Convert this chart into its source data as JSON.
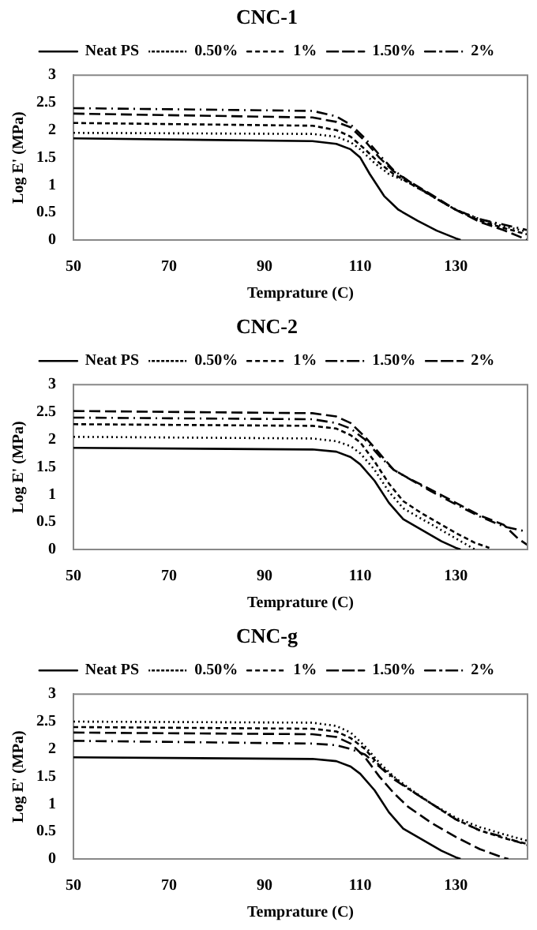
{
  "chart_data": [
    {
      "type": "line",
      "title": "CNC-1",
      "xlabel": "Temprature (C)",
      "ylabel": "Log E' (MPa)",
      "xlim": [
        50,
        145
      ],
      "xticks": [
        50,
        70,
        90,
        110,
        130
      ],
      "ylim": [
        0,
        3
      ],
      "yticks": [
        0,
        0.5,
        1,
        1.5,
        2,
        2.5,
        3
      ],
      "grid": false,
      "legend": "top",
      "marker": "none",
      "series": [
        {
          "name": "Neat PS",
          "color": "#000000",
          "line_style": "solid",
          "x": [
            50,
            100,
            105,
            108,
            110,
            112,
            115,
            118,
            122,
            126,
            130,
            131
          ],
          "values": [
            1.85,
            1.8,
            1.75,
            1.65,
            1.5,
            1.2,
            0.8,
            0.55,
            0.35,
            0.17,
            0.03,
            0
          ]
        },
        {
          "name": "0.50%",
          "color": "#000000",
          "line_style": "dotted",
          "x": [
            50,
            100,
            105,
            108,
            110,
            113,
            116,
            120,
            125,
            130,
            135,
            140,
            145
          ],
          "values": [
            1.95,
            1.93,
            1.88,
            1.78,
            1.65,
            1.4,
            1.2,
            1.05,
            0.8,
            0.55,
            0.38,
            0.25,
            0.15
          ]
        },
        {
          "name": "1%",
          "color": "#000000",
          "line_style": "dashed",
          "x": [
            50,
            100,
            105,
            108,
            111,
            114,
            117,
            120,
            125,
            130,
            135,
            140,
            145
          ],
          "values": [
            2.13,
            2.08,
            2.0,
            1.88,
            1.65,
            1.4,
            1.2,
            1.05,
            0.8,
            0.55,
            0.35,
            0.22,
            0.1
          ]
        },
        {
          "name": "1.50%",
          "color": "#000000",
          "line_style": "longdash",
          "x": [
            50,
            100,
            105,
            108,
            111,
            114,
            117,
            120,
            125,
            130,
            135,
            140,
            145
          ],
          "values": [
            2.3,
            2.23,
            2.15,
            2.05,
            1.8,
            1.5,
            1.25,
            1.08,
            0.82,
            0.55,
            0.33,
            0.18,
            0
          ]
        },
        {
          "name": "2%",
          "color": "#000000",
          "line_style": "dashdot",
          "x": [
            50,
            100,
            105,
            108,
            111,
            114,
            117,
            120,
            125,
            130,
            135,
            140,
            145
          ],
          "values": [
            2.4,
            2.35,
            2.25,
            2.1,
            1.85,
            1.55,
            1.27,
            1.08,
            0.8,
            0.55,
            0.38,
            0.28,
            0.18
          ]
        }
      ]
    },
    {
      "type": "line",
      "title": "CNC-2",
      "xlabel": "Temprature (C)",
      "ylabel": "Log E' (MPa)",
      "xlim": [
        50,
        145
      ],
      "xticks": [
        50,
        70,
        90,
        110,
        130
      ],
      "ylim": [
        0,
        3
      ],
      "yticks": [
        0,
        0.5,
        1,
        1.5,
        2,
        2.5,
        3
      ],
      "grid": false,
      "legend": "top",
      "marker": "none",
      "series": [
        {
          "name": "Neat PS",
          "color": "#000000",
          "line_style": "solid",
          "x": [
            50,
            100,
            105,
            108,
            110,
            113,
            116,
            119,
            123,
            127,
            130,
            131
          ],
          "values": [
            1.85,
            1.82,
            1.78,
            1.68,
            1.55,
            1.25,
            0.85,
            0.55,
            0.35,
            0.15,
            0.03,
            0
          ]
        },
        {
          "name": "0.50%",
          "color": "#000000",
          "line_style": "dotted",
          "x": [
            50,
            100,
            105,
            108,
            110,
            113,
            116,
            119,
            123,
            127,
            130,
            133,
            134
          ],
          "values": [
            2.05,
            2.02,
            1.97,
            1.88,
            1.75,
            1.45,
            1.05,
            0.75,
            0.55,
            0.35,
            0.2,
            0.05,
            0
          ]
        },
        {
          "name": "1%",
          "color": "#000000",
          "line_style": "dashed",
          "x": [
            50,
            100,
            105,
            108,
            110,
            113,
            116,
            119,
            123,
            127,
            130,
            134,
            137
          ],
          "values": [
            2.28,
            2.25,
            2.2,
            2.08,
            1.95,
            1.6,
            1.2,
            0.88,
            0.65,
            0.45,
            0.3,
            0.12,
            0.03
          ]
        },
        {
          "name": "1.50%",
          "color": "#000000",
          "line_style": "dashdot",
          "x": [
            50,
            100,
            105,
            108,
            111,
            114,
            117,
            120,
            125,
            130,
            135,
            140,
            145
          ],
          "values": [
            2.4,
            2.37,
            2.3,
            2.2,
            2.0,
            1.7,
            1.45,
            1.3,
            1.05,
            0.82,
            0.6,
            0.42,
            0.32
          ]
        },
        {
          "name": "2%",
          "color": "#000000",
          "line_style": "longdash",
          "x": [
            50,
            100,
            105,
            108,
            111,
            114,
            117,
            120,
            125,
            130,
            135,
            140,
            143,
            145
          ],
          "values": [
            2.52,
            2.48,
            2.42,
            2.3,
            2.05,
            1.75,
            1.45,
            1.3,
            1.08,
            0.85,
            0.62,
            0.45,
            0.2,
            0.08
          ]
        }
      ]
    },
    {
      "type": "line",
      "title": "CNC-g",
      "xlabel": "Temprature (C)",
      "ylabel": "Log E' (MPa)",
      "xlim": [
        50,
        145
      ],
      "xticks": [
        50,
        70,
        90,
        110,
        130
      ],
      "ylim": [
        0,
        3
      ],
      "yticks": [
        0,
        0.5,
        1,
        1.5,
        2,
        2.5,
        3
      ],
      "grid": false,
      "legend": "top",
      "marker": "none",
      "series": [
        {
          "name": "Neat PS",
          "color": "#000000",
          "line_style": "solid",
          "x": [
            50,
            100,
            105,
            108,
            110,
            113,
            116,
            119,
            123,
            127,
            130,
            131
          ],
          "values": [
            1.85,
            1.82,
            1.78,
            1.68,
            1.55,
            1.25,
            0.85,
            0.55,
            0.35,
            0.15,
            0.03,
            0
          ]
        },
        {
          "name": "0.50%",
          "color": "#000000",
          "line_style": "dotted",
          "x": [
            50,
            100,
            105,
            108,
            111,
            114,
            117,
            120,
            125,
            130,
            135,
            140,
            145
          ],
          "values": [
            2.5,
            2.48,
            2.42,
            2.3,
            2.05,
            1.75,
            1.5,
            1.3,
            1.0,
            0.75,
            0.58,
            0.45,
            0.33
          ]
        },
        {
          "name": "1%",
          "color": "#000000",
          "line_style": "dashed",
          "x": [
            50,
            100,
            105,
            108,
            111,
            114,
            117,
            120,
            125,
            130,
            135,
            140,
            145
          ],
          "values": [
            2.4,
            2.37,
            2.32,
            2.2,
            2.0,
            1.7,
            1.48,
            1.28,
            1.0,
            0.72,
            0.52,
            0.38,
            0.27
          ]
        },
        {
          "name": "1.50%",
          "color": "#000000",
          "line_style": "longdash",
          "x": [
            50,
            100,
            105,
            108,
            111,
            114,
            117,
            120,
            125,
            130,
            135,
            140,
            141
          ],
          "values": [
            2.3,
            2.27,
            2.22,
            2.1,
            1.85,
            1.5,
            1.2,
            0.95,
            0.65,
            0.4,
            0.18,
            0.02,
            0
          ]
        },
        {
          "name": "2%",
          "color": "#000000",
          "line_style": "dashdot",
          "x": [
            50,
            100,
            105,
            108,
            111,
            114,
            117,
            120,
            125,
            130,
            135,
            140,
            145
          ],
          "values": [
            2.15,
            2.1,
            2.07,
            2.0,
            1.9,
            1.68,
            1.45,
            1.28,
            1.0,
            0.72,
            0.52,
            0.4,
            0.25
          ]
        }
      ]
    }
  ]
}
